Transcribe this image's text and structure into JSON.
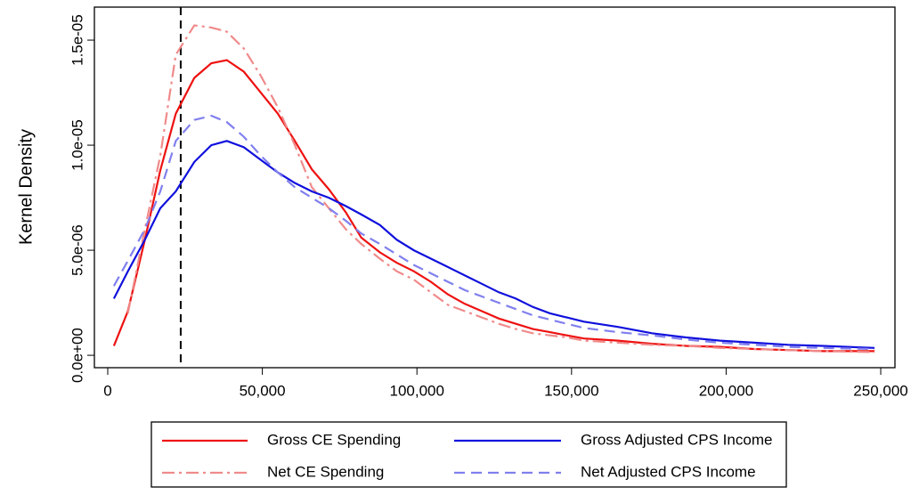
{
  "chart_data": {
    "type": "line",
    "ylabel": "Kernel Density",
    "x": [
      2000,
      6500,
      12000,
      17000,
      22000,
      28000,
      33500,
      38500,
      44000,
      49500,
      55000,
      60500,
      66000,
      71500,
      77000,
      82000,
      88000,
      93500,
      99000,
      104500,
      110000,
      115500,
      121000,
      126500,
      132000,
      137500,
      143000,
      148500,
      154000,
      165000,
      176000,
      187000,
      198000,
      209000,
      220000,
      231000,
      248000
    ],
    "series": [
      {
        "name": "Gross CE Spending",
        "color": "#ee1111",
        "line_style": "solid",
        "values": [
          4.5e-07,
          2.1e-06,
          5.5e-06,
          8.8e-06,
          1.15e-05,
          1.32e-05,
          1.39e-05,
          1.405e-05,
          1.35e-05,
          1.25e-05,
          1.15e-05,
          1.02e-05,
          8.85e-06,
          7.9e-06,
          6.8e-06,
          5.6e-06,
          4.9e-06,
          4.4e-06,
          4e-06,
          3.5e-06,
          2.9e-06,
          2.45e-06,
          2.1e-06,
          1.75e-06,
          1.5e-06,
          1.25e-06,
          1.1e-06,
          9.5e-07,
          8e-07,
          7e-07,
          5.5e-07,
          4.5e-07,
          4e-07,
          3e-07,
          2.5e-07,
          2e-07,
          2e-07
        ]
      },
      {
        "name": "Net CE Spending",
        "color": "#f08a8a",
        "line_style": "dashdot",
        "values": [
          null,
          2e-06,
          6e-06,
          9.5e-06,
          1.43e-05,
          1.57e-05,
          1.56e-05,
          1.54e-05,
          1.46e-05,
          1.33e-05,
          1.18e-05,
          1e-05,
          8e-06,
          7e-06,
          6e-06,
          5.3e-06,
          4.6e-06,
          4e-06,
          3.6e-06,
          3e-06,
          2.4e-06,
          2.1e-06,
          1.8e-06,
          1.5e-06,
          1.25e-06,
          1.05e-06,
          9.5e-07,
          8.5e-07,
          7e-07,
          6e-07,
          5e-07,
          4.5e-07,
          3.5e-07,
          3e-07,
          2.5e-07,
          2e-07,
          1.5e-07
        ]
      },
      {
        "name": "Gross Adjusted CPS Income",
        "color": "#1010dd",
        "line_style": "solid",
        "values": [
          2.7e-06,
          4e-06,
          5.5e-06,
          7e-06,
          7.8e-06,
          9.2e-06,
          1e-05,
          1.02e-05,
          9.9e-06,
          9.3e-06,
          8.7e-06,
          8.2e-06,
          7.8e-06,
          7.5e-06,
          7.1e-06,
          6.7e-06,
          6.2e-06,
          5.5e-06,
          5e-06,
          4.6e-06,
          4.2e-06,
          3.8e-06,
          3.4e-06,
          3e-06,
          2.7e-06,
          2.3e-06,
          2e-06,
          1.8e-06,
          1.6e-06,
          1.35e-06,
          1.05e-06,
          8.5e-07,
          7e-07,
          6e-07,
          5e-07,
          4.5e-07,
          3.5e-07
        ]
      },
      {
        "name": "Net Adjusted CPS Income",
        "color": "#8080ee",
        "line_style": "dashed",
        "values": [
          3.3e-06,
          4.5e-06,
          6e-06,
          7.8e-06,
          1.02e-05,
          1.12e-05,
          1.14e-05,
          1.11e-05,
          1.04e-05,
          9.5e-06,
          8.7e-06,
          8e-06,
          7.5e-06,
          7e-06,
          6.4e-06,
          5.8e-06,
          5.3e-06,
          4.8e-06,
          4.3e-06,
          3.9e-06,
          3.5e-06,
          3.1e-06,
          2.8e-06,
          2.5e-06,
          2.2e-06,
          1.9e-06,
          1.7e-06,
          1.5e-06,
          1.3e-06,
          1.1e-06,
          9.5e-07,
          7.5e-07,
          6e-07,
          5e-07,
          4e-07,
          3.5e-07,
          3e-07
        ]
      }
    ],
    "vline": 23600,
    "xlim": [
      -4320,
      254600
    ],
    "ylim": [
      -5.9e-07,
      1.657e-05
    ],
    "xticks": [
      0,
      {
        "value": 50000,
        "label": "50,000"
      },
      {
        "value": 100000,
        "label": "100,000"
      },
      {
        "value": 150000,
        "label": "150,000"
      },
      {
        "value": 200000,
        "label": "200,000"
      },
      {
        "value": 250000,
        "label": "250,000"
      }
    ],
    "yticks": [
      {
        "value": 0,
        "label": "0.0e+00"
      },
      {
        "value": 5e-06,
        "label": "5.0e-06"
      },
      {
        "value": 1e-05,
        "label": "1.0e-05"
      },
      {
        "value": 1.5e-05,
        "label": "1.5e-05"
      }
    ],
    "grid": false,
    "legend": "bottom"
  }
}
